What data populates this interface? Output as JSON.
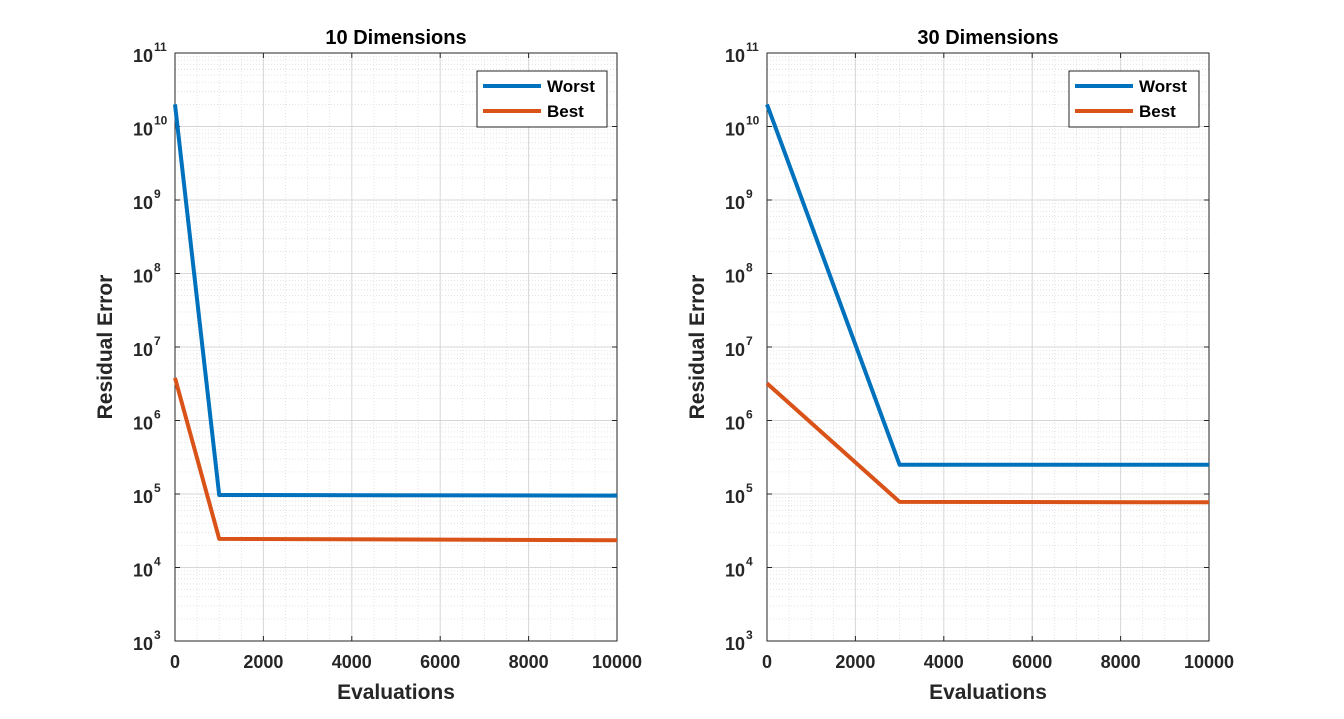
{
  "chart_data": [
    {
      "type": "line",
      "title": "10 Dimensions",
      "xlabel": "Evaluations",
      "ylabel": "Residual Error",
      "yscale": "log",
      "xlim": [
        0,
        10000
      ],
      "ylim": [
        1000,
        100000000000
      ],
      "xticks": [
        "0",
        "2000",
        "4000",
        "6000",
        "8000",
        "10000"
      ],
      "ytick_base": "10",
      "ytick_exponents": [
        "3",
        "4",
        "5",
        "6",
        "7",
        "8",
        "9",
        "10",
        "11"
      ],
      "grid": true,
      "legend_position": "top-right",
      "series": [
        {
          "name": "Worst",
          "color": "#0072BD",
          "x": [
            0,
            1000,
            10000
          ],
          "y": [
            20000000000,
            97000,
            95000
          ]
        },
        {
          "name": "Best",
          "color": "#D95319",
          "x": [
            0,
            1000,
            10000
          ],
          "y": [
            3800000,
            24500,
            23500
          ]
        }
      ]
    },
    {
      "type": "line",
      "title": "30 Dimensions",
      "xlabel": "Evaluations",
      "ylabel": "Residual Error",
      "yscale": "log",
      "xlim": [
        0,
        10000
      ],
      "ylim": [
        1000,
        100000000000
      ],
      "xticks": [
        "0",
        "2000",
        "4000",
        "6000",
        "8000",
        "10000"
      ],
      "ytick_base": "10",
      "ytick_exponents": [
        "3",
        "4",
        "5",
        "6",
        "7",
        "8",
        "9",
        "10",
        "11"
      ],
      "grid": true,
      "legend_position": "top-right",
      "series": [
        {
          "name": "Worst",
          "color": "#0072BD",
          "x": [
            0,
            3000,
            10000
          ],
          "y": [
            20000000000,
            250000,
            250000
          ]
        },
        {
          "name": "Best",
          "color": "#D95319",
          "x": [
            0,
            3000,
            10000
          ],
          "y": [
            3200000,
            78000,
            77000
          ]
        }
      ]
    }
  ]
}
